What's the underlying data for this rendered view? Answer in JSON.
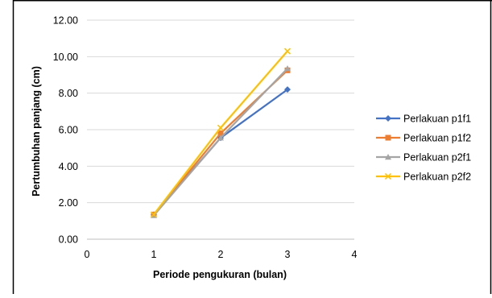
{
  "chart_data": {
    "type": "line",
    "xlabel": "Periode pengukuran (bulan)",
    "ylabel": "Pertumbuhan panjang (cm)",
    "xlim": [
      0,
      4
    ],
    "ylim": [
      0,
      12
    ],
    "x_ticks": [
      "0",
      "1",
      "2",
      "3",
      "4"
    ],
    "y_ticks": [
      "0.00",
      "2.00",
      "4.00",
      "6.00",
      "8.00",
      "10.00",
      "12.00"
    ],
    "grid": "horizontal",
    "legend_position": "right",
    "x": [
      1,
      2,
      3
    ],
    "series": [
      {
        "name": "Perlakuan p1f1",
        "values": [
          1.35,
          5.55,
          8.2
        ],
        "color": "#4472C4",
        "marker": "diamond"
      },
      {
        "name": "Perlakuan p1f2",
        "values": [
          1.35,
          5.8,
          9.25
        ],
        "color": "#ED7D31",
        "marker": "square"
      },
      {
        "name": "Perlakuan p2f1",
        "values": [
          1.3,
          5.55,
          9.35
        ],
        "color": "#A5A5A5",
        "marker": "triangle"
      },
      {
        "name": "Perlakuan p2f2",
        "values": [
          1.35,
          6.1,
          10.3
        ],
        "color": "#FFC000",
        "marker": "x"
      }
    ]
  }
}
